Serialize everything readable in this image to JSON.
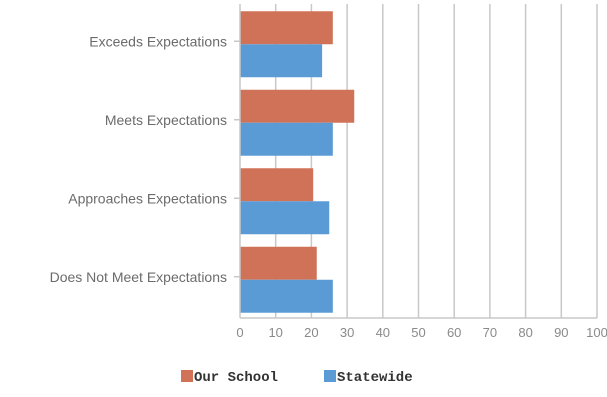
{
  "chart_data": {
    "type": "bar",
    "orientation": "horizontal",
    "categories": [
      "Exceeds Expectations",
      "Meets Expectations",
      "Approaches Expectations",
      "Does Not Meet Expectations"
    ],
    "series": [
      {
        "name": "Our School",
        "values": [
          26,
          32,
          20.5,
          21.5
        ],
        "color": "#d07257"
      },
      {
        "name": "Statewide",
        "values": [
          23,
          26,
          25,
          26
        ],
        "color": "#5b9bd5"
      }
    ],
    "xlim": [
      0,
      100
    ],
    "xticks": [
      "0",
      "10",
      "20",
      "30",
      "40",
      "50",
      "60",
      "70",
      "80",
      "90",
      "100"
    ],
    "grid": true,
    "legend_position": "bottom"
  }
}
